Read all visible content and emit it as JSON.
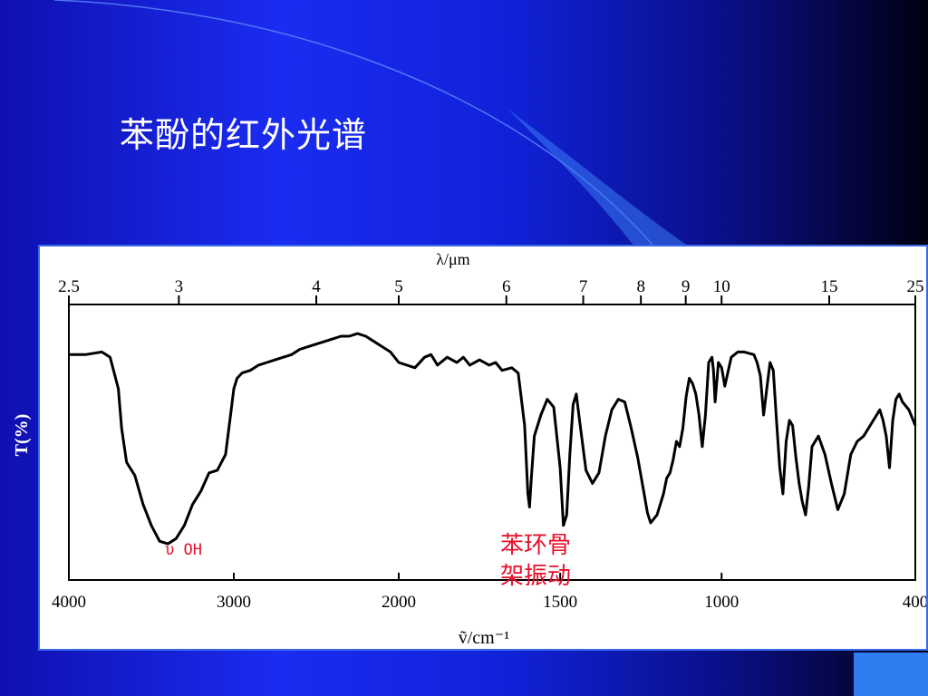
{
  "slide": {
    "title": "苯酚的红外光谱",
    "y_axis_label": "T(%)",
    "accent_box_color": "#2f7bf0",
    "background_colors": [
      "#1a2cf0",
      "#000010"
    ]
  },
  "chart_data": {
    "type": "line",
    "title": "",
    "top_axis": {
      "label": "λ/μm",
      "ticks": [
        "2.5",
        "3",
        "4",
        "5",
        "6",
        "7",
        "8",
        "9",
        "10",
        "15",
        "25"
      ]
    },
    "bottom_axis": {
      "label": "ṽ/cm⁻¹",
      "ticks": [
        "4000",
        "3000",
        "2000",
        "1500",
        "1000",
        "400"
      ]
    },
    "ylabel": "T(%)",
    "annotations": [
      {
        "text": "υ OH",
        "color": "#e8102a"
      },
      {
        "text": "苯环骨",
        "color": "#e8102a"
      },
      {
        "text": "架振动",
        "color": "#e8102a"
      }
    ],
    "series": [
      {
        "x": [
          4000,
          3900,
          3800,
          3750,
          3700,
          3680,
          3650,
          3600,
          3550,
          3500,
          3450,
          3400,
          3350,
          3300,
          3250,
          3200,
          3150,
          3100,
          3050,
          3020,
          3000,
          2980,
          2950,
          2900,
          2850,
          2800,
          2750,
          2700,
          2650,
          2600,
          2550,
          2500,
          2450,
          2400,
          2350,
          2300,
          2250,
          2200,
          2150,
          2100,
          2050,
          2000,
          1950,
          1920,
          1900,
          1880,
          1850,
          1820,
          1800,
          1780,
          1750,
          1720,
          1700,
          1680,
          1650,
          1630,
          1610,
          1600,
          1595,
          1590,
          1580,
          1560,
          1540,
          1520,
          1500,
          1490,
          1480,
          1470,
          1460,
          1450,
          1440,
          1420,
          1400,
          1380,
          1360,
          1340,
          1320,
          1300,
          1280,
          1260,
          1240,
          1230,
          1220,
          1200,
          1180,
          1170,
          1160,
          1150,
          1140,
          1130,
          1120,
          1110,
          1100,
          1090,
          1080,
          1070,
          1060,
          1050,
          1040,
          1030,
          1025,
          1020,
          1010,
          1000,
          990,
          970,
          950,
          930,
          900,
          890,
          880,
          870,
          860,
          850,
          840,
          830,
          820,
          810,
          800,
          790,
          780,
          770,
          760,
          750,
          740,
          730,
          720,
          700,
          680,
          660,
          640,
          620,
          600,
          580,
          560,
          540,
          520,
          510,
          500,
          490,
          480,
          470,
          460,
          450,
          440,
          420,
          400
        ],
        "values": [
          83,
          83,
          84,
          82,
          70,
          55,
          42,
          37,
          26,
          18,
          12,
          11,
          13,
          18,
          26,
          31,
          38,
          39,
          45,
          60,
          70,
          74,
          76,
          77,
          79,
          80,
          81,
          82,
          83,
          85,
          86,
          87,
          88,
          89,
          90,
          90,
          91,
          90,
          88,
          86,
          84,
          80,
          78,
          82,
          83,
          79,
          82,
          80,
          82,
          79,
          81,
          79,
          80,
          77,
          78,
          76,
          56,
          30,
          25,
          35,
          52,
          60,
          66,
          63,
          40,
          18,
          22,
          45,
          64,
          68,
          58,
          39,
          34,
          38,
          52,
          62,
          66,
          65,
          55,
          44,
          30,
          23,
          19,
          22,
          30,
          36,
          38,
          43,
          50,
          48,
          55,
          67,
          74,
          72,
          68,
          60,
          48,
          60,
          80,
          82,
          77,
          65,
          80,
          78,
          71,
          82,
          84,
          84,
          83,
          80,
          75,
          60,
          70,
          80,
          77,
          58,
          40,
          30,
          50,
          58,
          56,
          44,
          34,
          27,
          22,
          33,
          48,
          52,
          45,
          34,
          24,
          30,
          45,
          50,
          52,
          56,
          60,
          62,
          58,
          52,
          40,
          58,
          66,
          68,
          65,
          62,
          56
        ],
        "xlim": [
          4000,
          400
        ],
        "ylim": [
          0,
          100
        ]
      }
    ]
  }
}
